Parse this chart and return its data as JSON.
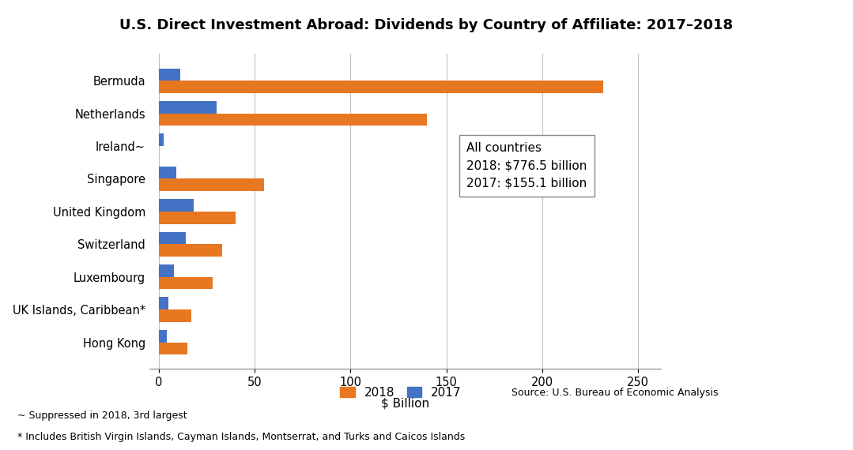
{
  "title": "U.S. Direct Investment Abroad: Dividends by Country of Affiliate: 2017–2018",
  "categories": [
    "Bermuda",
    "Netherlands",
    "Ireland~",
    "Singapore",
    "United Kingdom",
    "Switzerland",
    "Luxembourg",
    "UK Islands, Caribbean*",
    "Hong Kong"
  ],
  "values_2018": [
    232,
    140,
    0,
    55,
    40,
    33,
    28,
    17,
    15
  ],
  "values_2017": [
    11,
    30,
    2.5,
    9,
    18,
    14,
    8,
    5,
    4
  ],
  "color_2018": "#E87722",
  "color_2017": "#4472C4",
  "xlabel": "$ Billion",
  "xlim": [
    -5,
    262
  ],
  "xticks": [
    0,
    50,
    100,
    150,
    200,
    250
  ],
  "annotation_box": "All countries\n2018: $776.5 billion\n2017: $155.1 billion",
  "source_text": "Source: U.S. Bureau of Economic Analysis",
  "footnote1": "~ Suppressed in 2018, 3rd largest",
  "footnote2": "* Includes British Virgin Islands, Cayman Islands, Montserrat, and Turks and Caicos Islands",
  "legend_2018": "2018",
  "legend_2017": "2017",
  "background_color": "#FFFFFF",
  "grid_color": "#C0C0C0"
}
